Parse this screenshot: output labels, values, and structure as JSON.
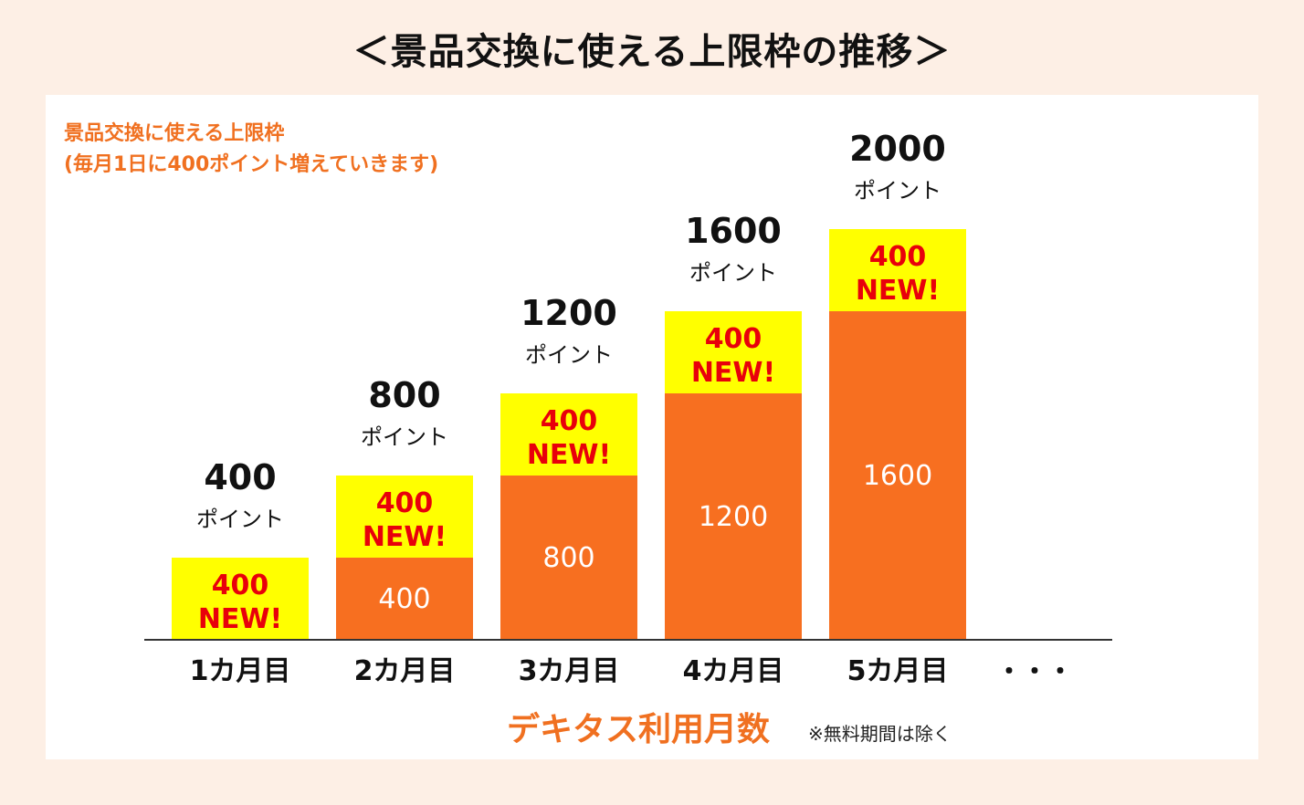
{
  "header": {
    "title": "＜景品交換に使える上限枠の推移＞"
  },
  "legend": {
    "line1": "景品交換に使える上限枠",
    "line2": "(毎月1日に400ポイント増えていきます)"
  },
  "chart_data": {
    "type": "bar",
    "stacked": true,
    "categories": [
      "1カ月目",
      "2カ月目",
      "3カ月目",
      "4カ月目",
      "5カ月目"
    ],
    "continuation_label": "・・・",
    "series": [
      {
        "values": [
          0,
          400,
          800,
          1200,
          1600
        ],
        "labels": [
          "",
          "400",
          "800",
          "1200",
          "1600"
        ],
        "color": "#f76f20"
      },
      {
        "values": [
          400,
          400,
          400,
          400,
          400
        ],
        "label_top": "400",
        "label_bottom": "NEW!",
        "color": "#ffff00",
        "label_color": "#e8000b"
      }
    ],
    "totals": [
      400,
      800,
      1200,
      1600,
      2000
    ],
    "totals_text": [
      "400",
      "800",
      "1200",
      "1600",
      "2000"
    ],
    "unit": "ポイント",
    "xlabel": "デキタス利用月数",
    "xlabel_note": "※無料期間は除く",
    "ylim": [
      0,
      2000
    ],
    "grid": false
  }
}
